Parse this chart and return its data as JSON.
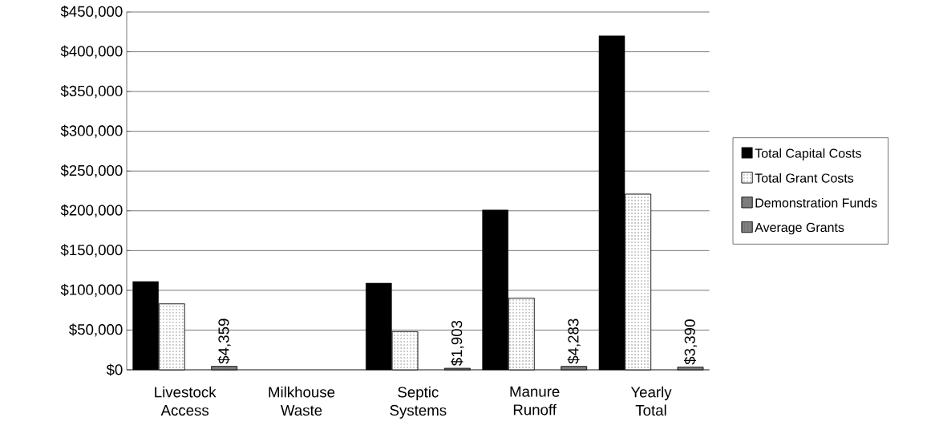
{
  "chart_data": {
    "type": "bar",
    "categories": [
      "Livestock Access",
      "Milkhouse Waste",
      "Septic Systems",
      "Manure Runoff",
      "Yearly Total"
    ],
    "series": [
      {
        "name": "Total Capital Costs",
        "color": "#000000",
        "values": [
          111000,
          null,
          109000,
          201000,
          420000
        ]
      },
      {
        "name": "Total Grant Costs",
        "color": "#ffffff",
        "values": [
          83000,
          null,
          48000,
          90000,
          221000
        ]
      },
      {
        "name": "Demonstration Funds",
        "color": "#808080",
        "values": [
          null,
          null,
          null,
          null,
          null
        ]
      },
      {
        "name": "Average Grants",
        "color": "#808080",
        "values": [
          4359,
          null,
          1903,
          4283,
          3390
        ],
        "value_labels": [
          "$4,359",
          null,
          "$1,903",
          "$4,283",
          "$3,390"
        ]
      }
    ],
    "ylim": [
      0,
      450000
    ],
    "yticks": [
      {
        "value": 0,
        "label": "$0"
      },
      {
        "value": 50000,
        "label": "$50,000"
      },
      {
        "value": 100000,
        "label": "$100,000"
      },
      {
        "value": 150000,
        "label": "$150,000"
      },
      {
        "value": 200000,
        "label": "$200,000"
      },
      {
        "value": 250000,
        "label": "$250,000"
      },
      {
        "value": 300000,
        "label": "$300,000"
      },
      {
        "value": 350000,
        "label": "$350,000"
      },
      {
        "value": 400000,
        "label": "$400,000"
      },
      {
        "value": 450000,
        "label": "$450,000"
      }
    ],
    "grid": "y",
    "legend": "right"
  }
}
